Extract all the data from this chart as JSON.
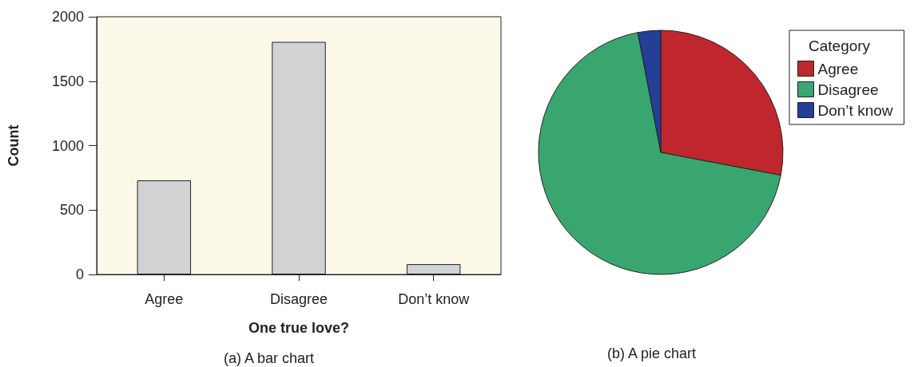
{
  "chart_data": [
    {
      "type": "bar",
      "categories": [
        "Agree",
        "Disagree",
        "Don’t know"
      ],
      "values": [
        730,
        1805,
        80
      ],
      "color": "#d1d2d4",
      "xlabel": "One true love?",
      "ylabel": "Count",
      "ylim": [
        0,
        2000
      ],
      "yticks": [
        0,
        500,
        1000,
        1500,
        2000
      ],
      "grid": false,
      "annotations": [
        "(a) A bar chart"
      ]
    },
    {
      "type": "pie",
      "categories": [
        "Agree",
        "Disagree",
        "Don’t know"
      ],
      "values": [
        28,
        69,
        3
      ],
      "colors": [
        "#c0272d",
        "#3aa66f",
        "#233f96"
      ],
      "legend": "top right",
      "legend_title": "Category",
      "annotations": [
        "(b) A pie chart"
      ]
    }
  ]
}
